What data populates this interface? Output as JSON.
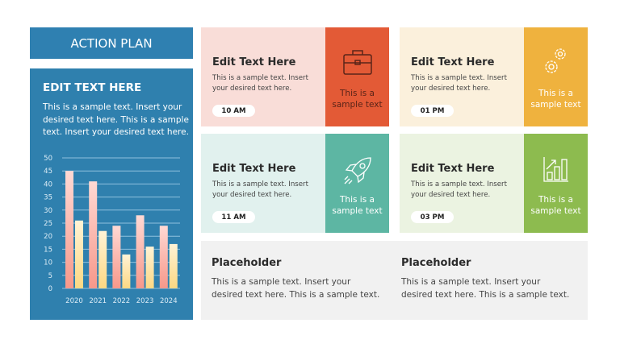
{
  "header": {
    "title": "ACTION PLAN"
  },
  "panel": {
    "title": "EDIT TEXT HERE",
    "body": "This is a sample text. Insert your desired text here. This is a sample text. Insert your desired text here."
  },
  "chart_data": {
    "type": "bar",
    "categories": [
      "2020",
      "2021",
      "2022",
      "2023",
      "2024"
    ],
    "series": [
      {
        "values": [
          45,
          41,
          24,
          28,
          24
        ],
        "color": "#f7a08f"
      },
      {
        "values": [
          26,
          22,
          13,
          16,
          17
        ],
        "color": "#fde6a4"
      }
    ],
    "ylim": [
      0,
      50
    ],
    "yticks": [
      0,
      5,
      10,
      15,
      20,
      25,
      30,
      35,
      40,
      45,
      50
    ],
    "grid": true
  },
  "cards": [
    {
      "title": "Edit Text Here",
      "body": "This is a sample text. Insert your desired text here.",
      "time": "10 AM",
      "side": "This is a sample text",
      "icon": "briefcase-icon",
      "bg": "#f9ddd8",
      "accent": "#e35a36",
      "fg": "#5a2418"
    },
    {
      "title": "Edit Text Here",
      "body": "This is a sample text. Insert your desired text here.",
      "time": "01 PM",
      "side": "This is a sample text",
      "icon": "gears-icon",
      "bg": "#fbf0dc",
      "accent": "#efb23e",
      "fg": "#ffffff"
    },
    {
      "title": "Edit Text Here",
      "body": "This is a sample text. Insert your desired text here.",
      "time": "11 AM",
      "side": "This is a sample text",
      "icon": "rocket-icon",
      "bg": "#e1f1ee",
      "accent": "#5db6a3",
      "fg": "#ffffff"
    },
    {
      "title": "Edit Text Here",
      "body": "This is a sample text. Insert your desired text here.",
      "time": "03 PM",
      "side": "This is a sample text",
      "icon": "growth-chart-icon",
      "bg": "#ebf3e1",
      "accent": "#8dbb4f",
      "fg": "#ffffff"
    }
  ],
  "placeholders": [
    {
      "title": "Placeholder",
      "body": "This is a sample text. Insert your desired text here. This is a sample text."
    },
    {
      "title": "Placeholder",
      "body": "This is a sample text. Insert your desired text here. This is a sample text."
    }
  ]
}
